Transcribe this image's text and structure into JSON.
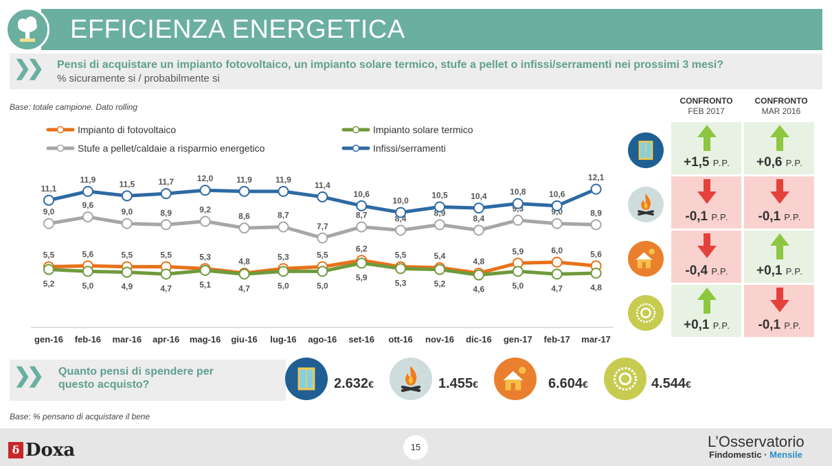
{
  "header": {
    "title": "EFFICIENZA ENERGETICA",
    "logo_icon": "cloud-house-icon"
  },
  "question": {
    "text": "Pensi di acquistare un impianto fotovoltaico, un impianto solare termico, stufe a pellet o infissi/serramenti nei prossimi 3 mesi?",
    "subtitle": "% sicuramente si / probabilmente si"
  },
  "base_note": "Base: totale campione. Dato rolling",
  "chart_data": {
    "type": "line",
    "categories": [
      "gen-16",
      "feb-16",
      "mar-16",
      "apr-16",
      "mag-16",
      "giu-16",
      "lug-16",
      "ago-16",
      "set-16",
      "ott-16",
      "nov-16",
      "dic-16",
      "gen-17",
      "feb-17",
      "mar-17"
    ],
    "series": [
      {
        "name": "Impianto di fotovoltaico",
        "color": "#e8711a",
        "label_pos": "above",
        "values": [
          5.5,
          5.6,
          5.5,
          5.5,
          5.3,
          4.8,
          5.3,
          5.5,
          6.2,
          5.5,
          5.4,
          4.8,
          5.9,
          6.0,
          5.6
        ],
        "labels": [
          "5,5",
          "5,6",
          "5,5",
          "5,5",
          "5,3",
          "4,8",
          "5,3",
          "5,5",
          "6,2",
          "5,5",
          "5,4",
          "4,8",
          "5,9",
          "6,0",
          "5,6"
        ]
      },
      {
        "name": "Impianto solare termico",
        "color": "#6f9a3c",
        "label_pos": "below",
        "values": [
          5.2,
          5.0,
          4.9,
          4.7,
          5.1,
          4.7,
          5.0,
          5.0,
          5.9,
          5.3,
          5.2,
          4.6,
          5.0,
          4.7,
          4.8
        ],
        "labels": [
          "5,2",
          "5,0",
          "4,9",
          "4,7",
          "5,1",
          "4,7",
          "5,0",
          "5,0",
          "5,9",
          "5,3",
          "5,2",
          "4,6",
          "5,0",
          "4,7",
          "4,8"
        ]
      },
      {
        "name": "Stufe a pellet/caldaie a risparmio energetico",
        "color": "#a6a6a6",
        "label_pos": "above",
        "values": [
          9.0,
          9.6,
          9.0,
          8.9,
          9.2,
          8.6,
          8.7,
          7.7,
          8.7,
          8.4,
          8.9,
          8.4,
          9.3,
          9.0,
          8.9
        ],
        "labels": [
          "9,0",
          "9,6",
          "9,0",
          "8,9",
          "9,2",
          "8,6",
          "8,7",
          "7,7",
          "8,7",
          "8,4",
          "8,9",
          "8,4",
          "9,3",
          "9,0",
          "8,9"
        ]
      },
      {
        "name": "Infissi/serramenti",
        "color": "#2e6aa3",
        "label_pos": "above",
        "values": [
          11.1,
          11.9,
          11.5,
          11.7,
          12.0,
          11.9,
          11.9,
          11.4,
          10.6,
          10.0,
          10.5,
          10.4,
          10.8,
          10.6,
          12.1
        ],
        "labels": [
          "11,1",
          "11,9",
          "11,5",
          "11,7",
          "12,0",
          "11,9",
          "11,9",
          "11,4",
          "10,6",
          "10,0",
          "10,5",
          "10,4",
          "10,8",
          "10,6",
          "12,1"
        ]
      }
    ]
  },
  "comparison": {
    "headers": [
      {
        "title": "CONFRONTO",
        "sub": "FEB 2017"
      },
      {
        "title": "CONFRONTO",
        "sub": "MAR 2016"
      }
    ],
    "unit": "P.P.",
    "rows": [
      {
        "icon": "window-icon",
        "feb": {
          "value": "+1,5",
          "dir": "up"
        },
        "mar": {
          "value": "+0,6",
          "dir": "up"
        }
      },
      {
        "icon": "fire-icon",
        "feb": {
          "value": "-0,1",
          "dir": "down"
        },
        "mar": {
          "value": "-0,1",
          "dir": "down"
        }
      },
      {
        "icon": "house-sun-icon",
        "feb": {
          "value": "-0,4",
          "dir": "down"
        },
        "mar": {
          "value": "+0,1",
          "dir": "up"
        }
      },
      {
        "icon": "sun-icon",
        "feb": {
          "value": "+0,1",
          "dir": "up"
        },
        "mar": {
          "value": "-0,1",
          "dir": "down"
        }
      }
    ]
  },
  "spending": {
    "question": "Quanto pensi di spendere per questo acquisto?",
    "currency": "€",
    "items": [
      {
        "icon": "window-icon",
        "value": "2.632"
      },
      {
        "icon": "fire-icon",
        "value": "1.455"
      },
      {
        "icon": "house-sun-icon",
        "value": "6.604"
      },
      {
        "icon": "sun-icon",
        "value": "4.544"
      }
    ]
  },
  "base_note_2": "Base: % pensano di acquistare il bene",
  "footer": {
    "page_number": "15",
    "brand_left": "Doxa",
    "brand_right_title": "L’Osservatorio",
    "brand_right_sub_a": "Findomestic · ",
    "brand_right_sub_b": "Mensile"
  }
}
